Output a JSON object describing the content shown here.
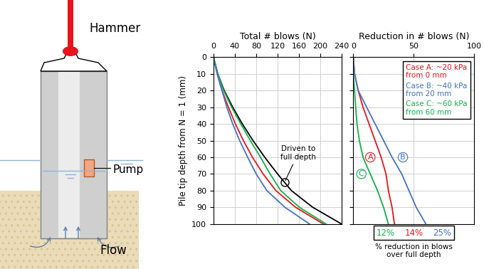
{
  "diagram": {
    "hammer_label": "Hammer",
    "pump_label": "Pump",
    "flow_label": "Flow"
  },
  "chart_data": [
    {
      "type": "line",
      "x_label": "Total # blows (N)",
      "y_label": "Pile tip depth from N = 1 (mm)",
      "xlim": [
        0,
        240
      ],
      "xticks": [
        0,
        40,
        80,
        120,
        160,
        200,
        240
      ],
      "ylim": [
        100,
        0
      ],
      "yticks": [
        0,
        10,
        20,
        30,
        40,
        50,
        60,
        70,
        80,
        90,
        100
      ],
      "grid": true,
      "annotation": {
        "text": "Driven to\nfull depth",
        "x": 133,
        "y": 75
      },
      "series": [
        {
          "color": "#000000",
          "x": [
            0,
            8,
            20,
            36,
            54,
            74,
            96,
            120,
            146,
            186,
            240
          ],
          "y": [
            0,
            10,
            20,
            30,
            40,
            50,
            60,
            70,
            80,
            90,
            100
          ]
        },
        {
          "color": "#e8141b",
          "x": [
            0,
            7,
            16,
            28,
            41,
            56,
            73,
            93,
            117,
            154,
            206
          ],
          "y": [
            0,
            10,
            20,
            30,
            40,
            50,
            60,
            70,
            80,
            90,
            100
          ]
        },
        {
          "color": "#12b04a",
          "x": [
            0,
            8,
            19,
            34,
            51,
            69,
            88,
            106,
            126,
            161,
            211
          ],
          "y": [
            0,
            10,
            20,
            30,
            40,
            50,
            60,
            70,
            80,
            90,
            100
          ]
        },
        {
          "color": "#4472c4",
          "x": [
            0,
            7,
            16,
            25,
            36,
            49,
            64,
            80,
            100,
            134,
            180
          ],
          "y": [
            0,
            10,
            20,
            30,
            40,
            50,
            60,
            70,
            80,
            90,
            100
          ]
        }
      ]
    },
    {
      "type": "line",
      "x_label": "Reduction in # blows (N)",
      "xlim": [
        0,
        100
      ],
      "xticks": [
        0,
        50,
        100
      ],
      "ylim": [
        100,
        0
      ],
      "yticks": [
        0,
        10,
        20,
        30,
        40,
        50,
        60,
        70,
        80,
        90,
        100
      ],
      "tick_labels": "x",
      "grid": false,
      "series": [
        {
          "name": "A",
          "color": "#e8141b",
          "x": [
            0,
            1,
            4,
            8,
            13,
            18,
            23,
            27,
            29,
            32,
            34
          ],
          "y": [
            0,
            10,
            20,
            30,
            40,
            50,
            60,
            70,
            80,
            90,
            100
          ]
        },
        {
          "name": "B",
          "color": "#4472c4",
          "x": [
            0,
            1,
            4,
            11,
            18,
            25,
            32,
            40,
            46,
            52,
            60
          ],
          "y": [
            0,
            10,
            20,
            30,
            40,
            50,
            60,
            70,
            80,
            90,
            100
          ]
        },
        {
          "name": "C",
          "color": "#12b04a",
          "x": [
            0,
            0,
            1,
            2,
            3,
            5,
            8,
            14,
            20,
            25,
            29
          ],
          "y": [
            0,
            10,
            20,
            30,
            40,
            50,
            60,
            70,
            80,
            90,
            100
          ]
        }
      ],
      "notes": [
        {
          "text": "Case A: ~20 kPa\nfrom 0 mm",
          "color": "#e8141b"
        },
        {
          "text": "Case B: ~40 kPa\nfrom 20 mm",
          "color": "#4472c4"
        },
        {
          "text": "Case C: ~60 kPa\nfrom 60 mm",
          "color": "#12b04a"
        }
      ],
      "reduction_percent": {
        "caption": "% reduction in blows\nover full depth",
        "values": [
          12,
          14,
          25
        ],
        "value_labels": [
          "12%",
          "14%",
          "25%"
        ],
        "colors": [
          "#12b04a",
          "#e8141b",
          "#4472c4"
        ]
      }
    }
  ]
}
